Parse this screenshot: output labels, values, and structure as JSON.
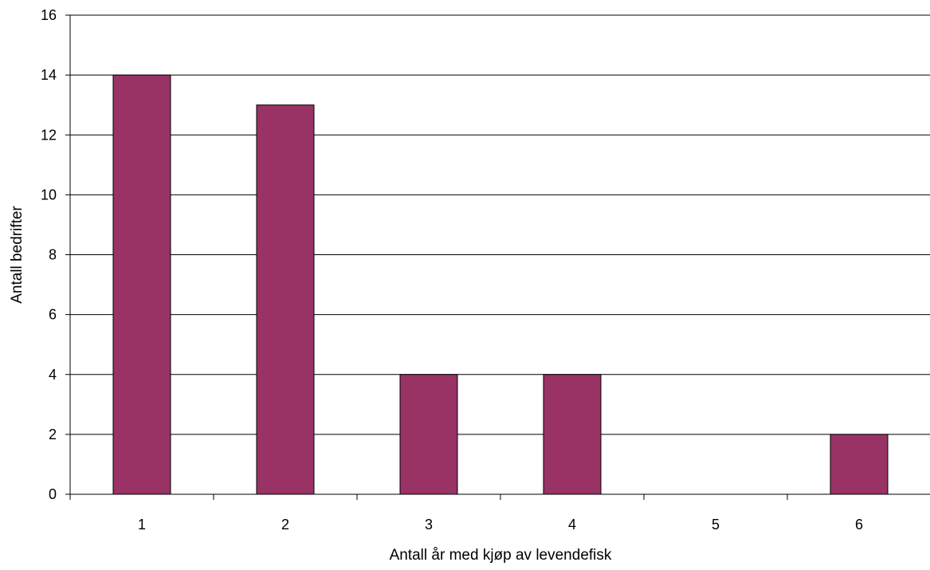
{
  "chart_data": {
    "type": "bar",
    "title": "",
    "xlabel": "Antall år med kjøp av levendefisk",
    "ylabel": "Antall bedrifter",
    "categories": [
      "1",
      "2",
      "3",
      "4",
      "5",
      "6"
    ],
    "series": [
      {
        "values": [
          14,
          13,
          4,
          4,
          0,
          2
        ]
      }
    ],
    "ylim": [
      0,
      16
    ],
    "yticks": [
      0,
      2,
      4,
      6,
      8,
      10,
      12,
      14,
      16
    ],
    "ytick_labels": [
      "0",
      "2",
      "4",
      "6",
      "8",
      "10",
      "12",
      "14",
      "16"
    ],
    "grid": "horizontal major gridlines",
    "legend": "none",
    "bar_color": "#993366",
    "bar_edge_color": "#000000"
  }
}
